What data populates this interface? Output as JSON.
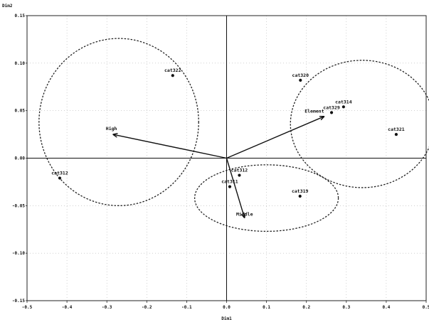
{
  "chart_data": {
    "type": "scatter",
    "title": "",
    "xlabel": "Dim1",
    "ylabel": "Dim2",
    "xlim": [
      -0.5,
      0.5
    ],
    "ylim": [
      -0.15,
      0.15
    ],
    "x_ticks": [
      -0.5,
      -0.4,
      -0.3,
      -0.2,
      -0.1,
      0.0,
      0.1,
      0.2,
      0.3,
      0.4,
      0.5
    ],
    "x_tick_labels": [
      "-0.5",
      "-0.4",
      "-0.3",
      "-0.2",
      "-0.1",
      "0.0",
      "0.1",
      "0.2",
      "0.3",
      "0.4",
      "0.5"
    ],
    "y_ticks": [
      -0.15,
      -0.1,
      -0.05,
      0.0,
      0.05,
      0.1,
      0.15
    ],
    "y_tick_labels": [
      "-0.15",
      "-0.10",
      "-0.05",
      "0.00",
      "0.05",
      "0.10",
      "0.15"
    ],
    "grid": true,
    "points": [
      {
        "label": "cat322",
        "x": -0.135,
        "y": 0.087
      },
      {
        "label": "cat320",
        "x": 0.185,
        "y": 0.082
      },
      {
        "label": "cat314",
        "x": 0.293,
        "y": 0.054
      },
      {
        "label": "cat329",
        "x": 0.263,
        "y": 0.048
      },
      {
        "label": "cat321",
        "x": 0.425,
        "y": 0.025
      },
      {
        "label": "cat312",
        "x": -0.418,
        "y": -0.021
      },
      {
        "label": "cat312",
        "x": 0.032,
        "y": -0.018
      },
      {
        "label": "cat311",
        "x": 0.008,
        "y": -0.03
      },
      {
        "label": "cat319",
        "x": 0.184,
        "y": -0.04
      }
    ],
    "vectors": [
      {
        "label": "High",
        "x": -0.285,
        "y": 0.025
      },
      {
        "label": "Element",
        "x": 0.245,
        "y": 0.044
      },
      {
        "label": "Middle",
        "x": 0.045,
        "y": -0.063
      }
    ],
    "ellipses": [
      {
        "cx": -0.27,
        "cy": 0.038,
        "rx": 0.2,
        "ry": 0.088
      },
      {
        "cx": 0.34,
        "cy": 0.036,
        "rx": 0.18,
        "ry": 0.067
      },
      {
        "cx": 0.1,
        "cy": -0.042,
        "rx": 0.18,
        "ry": 0.035
      }
    ]
  }
}
